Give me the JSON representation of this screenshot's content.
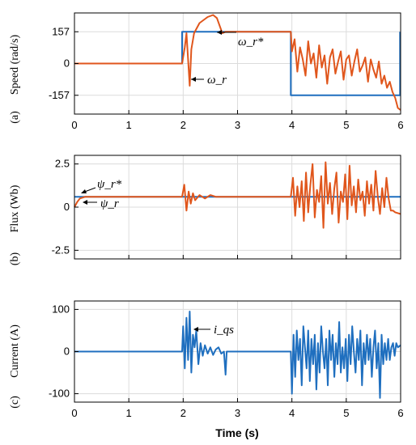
{
  "colors": {
    "reference": "#1f6fbf",
    "actual": "#e0561c",
    "current": "#1f6fbf"
  },
  "xlabel": "Time (s)",
  "chart_data": [
    {
      "type": "line",
      "panel": "(a)",
      "ylabel": "Speed (rad/s)",
      "xlim": [
        0,
        6
      ],
      "ylim": [
        -250,
        250
      ],
      "yticks": [
        -157,
        0,
        157
      ],
      "ytick_labels": [
        "-157",
        "0",
        "157"
      ],
      "xticks": [
        0,
        1,
        2,
        3,
        4,
        5,
        6
      ],
      "xtick_labels": [
        "0",
        "1",
        "2",
        "3",
        "4",
        "5",
        "6"
      ],
      "grid": true,
      "annotations": [
        "ω_r*",
        "ω_r"
      ],
      "series": [
        {
          "key": "reference",
          "color_key": "reference",
          "x": [
            0,
            1.98,
            1.98,
            3.98,
            3.98,
            5.99,
            5.99
          ],
          "y": [
            0,
            0,
            157,
            157,
            -157,
            -157,
            157
          ]
        },
        {
          "key": "actual",
          "color_key": "actual",
          "x": [
            0,
            1.98,
            2.03,
            2.06,
            2.09,
            2.12,
            2.15,
            2.2,
            2.3,
            2.45,
            2.55,
            2.62,
            2.72,
            2.78,
            2.9,
            3.98,
            4.0,
            4.05,
            4.1,
            4.15,
            4.2,
            4.25,
            4.3,
            4.35,
            4.4,
            4.45,
            4.5,
            4.55,
            4.6,
            4.65,
            4.7,
            4.75,
            4.8,
            4.85,
            4.9,
            4.95,
            5.0,
            5.05,
            5.1,
            5.15,
            5.2,
            5.25,
            5.3,
            5.35,
            5.4,
            5.45,
            5.5,
            5.55,
            5.6,
            5.65,
            5.7,
            5.75,
            5.8,
            5.85,
            5.9,
            5.95,
            6.0
          ],
          "y": [
            0,
            0,
            80,
            150,
            20,
            -110,
            70,
            150,
            200,
            230,
            240,
            225,
            150,
            157,
            157,
            157,
            60,
            120,
            -40,
            80,
            20,
            -60,
            110,
            0,
            50,
            -70,
            90,
            -20,
            40,
            -100,
            30,
            70,
            -50,
            10,
            60,
            -80,
            20,
            40,
            -60,
            10,
            70,
            -40,
            -10,
            30,
            -90,
            20,
            -30,
            -70,
            10,
            -100,
            -60,
            -120,
            -90,
            -140,
            -170,
            -220,
            -230
          ]
        }
      ]
    },
    {
      "type": "line",
      "panel": "(b)",
      "ylabel": "Flux (Wb)",
      "xlim": [
        0,
        6
      ],
      "ylim": [
        -3,
        3
      ],
      "yticks": [
        -2.5,
        0,
        2.5
      ],
      "ytick_labels": [
        "-2.5",
        "0",
        "2.5"
      ],
      "xticks": [
        0,
        1,
        2,
        3,
        4,
        5,
        6
      ],
      "xtick_labels": [
        "0",
        "1",
        "2",
        "3",
        "4",
        "5",
        "6"
      ],
      "grid": true,
      "annotations": [
        "ψ_r*",
        "ψ_r"
      ],
      "series": [
        {
          "key": "reference",
          "color_key": "reference",
          "x": [
            0,
            6
          ],
          "y": [
            0.6,
            0.6
          ]
        },
        {
          "key": "actual",
          "color_key": "actual",
          "x": [
            0,
            0.05,
            0.1,
            0.2,
            1.98,
            2.02,
            2.06,
            2.1,
            2.14,
            2.18,
            2.22,
            2.3,
            2.4,
            2.5,
            2.6,
            2.7,
            2.8,
            3.98,
            4.02,
            4.06,
            4.1,
            4.14,
            4.18,
            4.22,
            4.26,
            4.3,
            4.34,
            4.38,
            4.42,
            4.46,
            4.5,
            4.54,
            4.58,
            4.62,
            4.66,
            4.7,
            4.74,
            4.78,
            4.82,
            4.86,
            4.9,
            4.94,
            4.98,
            5.02,
            5.06,
            5.1,
            5.14,
            5.18,
            5.22,
            5.26,
            5.3,
            5.34,
            5.38,
            5.42,
            5.46,
            5.5,
            5.54,
            5.58,
            5.62,
            5.66,
            5.7,
            5.74,
            5.78,
            5.82,
            5.86,
            5.9,
            6.0
          ],
          "y": [
            0.0,
            0.3,
            0.5,
            0.6,
            0.6,
            1.3,
            -0.2,
            0.9,
            0.2,
            0.8,
            0.4,
            0.7,
            0.5,
            0.7,
            0.6,
            0.6,
            0.6,
            0.6,
            1.7,
            -0.5,
            1.2,
            0.0,
            1.5,
            -0.8,
            2.0,
            -0.3,
            1.3,
            2.5,
            -0.6,
            1.0,
            0.3,
            1.8,
            -1.2,
            2.6,
            0.2,
            1.4,
            -0.4,
            1.1,
            2.0,
            -0.9,
            0.9,
            0.3,
            1.9,
            -0.7,
            2.4,
            0.1,
            1.2,
            -0.3,
            1.6,
            0.4,
            0.9,
            -0.5,
            1.5,
            0.2,
            1.3,
            -0.2,
            2.1,
            0.6,
            -0.4,
            1.1,
            0.0,
            1.7,
            0.5,
            -0.2,
            -0.2,
            -0.3,
            -0.4
          ]
        }
      ]
    },
    {
      "type": "line",
      "panel": "(c)",
      "ylabel": "Current (A)",
      "xlim": [
        0,
        6
      ],
      "ylim": [
        -120,
        120
      ],
      "yticks": [
        -100,
        0,
        100
      ],
      "ytick_labels": [
        "-100",
        "0",
        "100"
      ],
      "xticks": [
        0,
        1,
        2,
        3,
        4,
        5,
        6
      ],
      "xtick_labels": [
        "0",
        "1",
        "2",
        "3",
        "4",
        "5",
        "6"
      ],
      "grid": true,
      "annotations": [
        "i_qs"
      ],
      "series": [
        {
          "key": "current",
          "color_key": "current",
          "x": [
            0,
            1.98,
            2.0,
            2.03,
            2.06,
            2.09,
            2.12,
            2.15,
            2.18,
            2.21,
            2.24,
            2.28,
            2.32,
            2.36,
            2.4,
            2.45,
            2.5,
            2.55,
            2.6,
            2.65,
            2.7,
            2.75,
            2.78,
            2.8,
            3.98,
            4.0,
            4.03,
            4.06,
            4.09,
            4.12,
            4.15,
            4.18,
            4.21,
            4.24,
            4.27,
            4.3,
            4.33,
            4.36,
            4.39,
            4.42,
            4.45,
            4.48,
            4.51,
            4.54,
            4.57,
            4.6,
            4.63,
            4.66,
            4.69,
            4.72,
            4.75,
            4.78,
            4.81,
            4.84,
            4.87,
            4.9,
            4.93,
            4.96,
            4.99,
            5.02,
            5.05,
            5.08,
            5.11,
            5.14,
            5.17,
            5.2,
            5.23,
            5.26,
            5.29,
            5.32,
            5.35,
            5.38,
            5.41,
            5.44,
            5.47,
            5.5,
            5.53,
            5.56,
            5.59,
            5.62,
            5.65,
            5.68,
            5.71,
            5.74,
            5.77,
            5.8,
            5.83,
            5.86,
            5.89,
            5.92,
            5.95,
            6.0
          ],
          "y": [
            0,
            0,
            60,
            -40,
            80,
            -20,
            95,
            -50,
            40,
            10,
            50,
            -30,
            20,
            -10,
            15,
            -5,
            10,
            -8,
            5,
            10,
            -5,
            0,
            -55,
            0,
            0,
            -100,
            40,
            -60,
            50,
            -20,
            30,
            -80,
            60,
            10,
            -40,
            50,
            -70,
            30,
            -30,
            40,
            -90,
            20,
            -50,
            60,
            0,
            -40,
            30,
            -80,
            50,
            -20,
            40,
            -60,
            20,
            -30,
            70,
            -50,
            10,
            -40,
            30,
            -70,
            40,
            -30,
            60,
            0,
            -50,
            30,
            -20,
            50,
            -80,
            20,
            -30,
            40,
            -20,
            30,
            -60,
            10,
            50,
            -40,
            20,
            -110,
            40,
            -30,
            20,
            -20,
            30,
            -20,
            10,
            20,
            -10,
            20,
            10,
            15
          ]
        }
      ]
    }
  ]
}
